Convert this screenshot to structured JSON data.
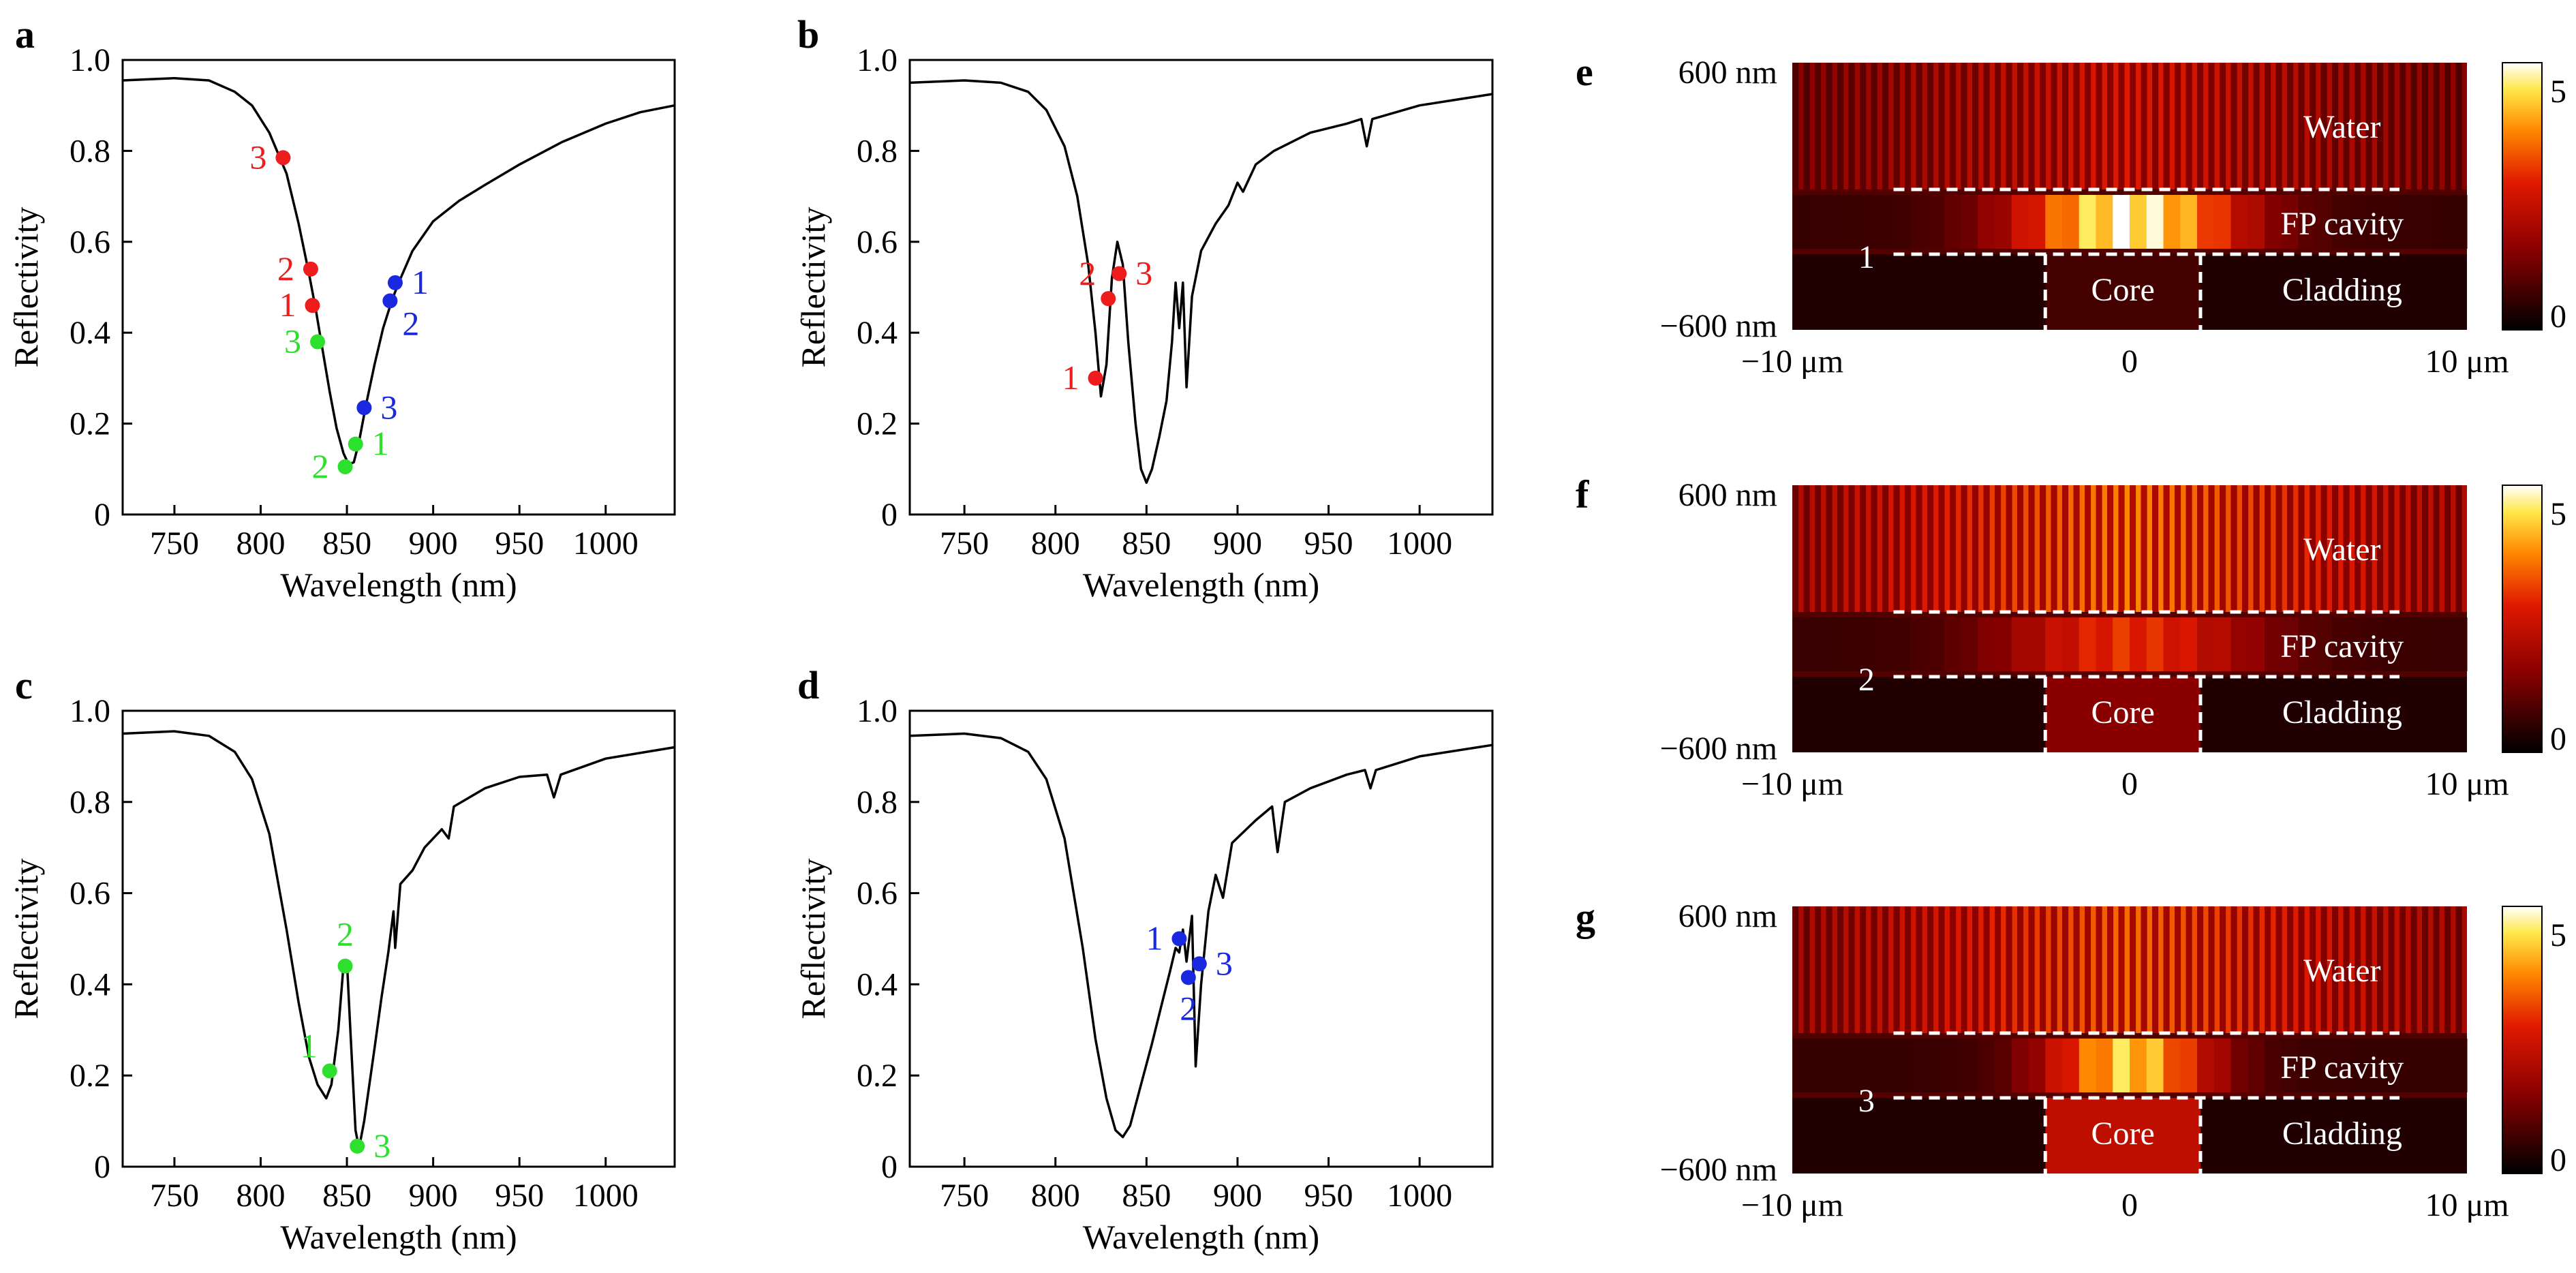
{
  "chart_data": [
    {
      "panel": "a",
      "type": "line",
      "xlabel": "Wavelength (nm)",
      "ylabel": "Reflectivity",
      "xlim": [
        720,
        1040
      ],
      "ylim": [
        0,
        1.0
      ],
      "xticks": [
        750,
        800,
        850,
        900,
        950,
        1000
      ],
      "yticks": [
        "0",
        "0.2",
        "0.4",
        "0.6",
        "0.8",
        "1.0"
      ],
      "curve": [
        [
          720,
          0.955
        ],
        [
          750,
          0.96
        ],
        [
          770,
          0.955
        ],
        [
          785,
          0.93
        ],
        [
          795,
          0.9
        ],
        [
          805,
          0.84
        ],
        [
          815,
          0.75
        ],
        [
          822,
          0.64
        ],
        [
          828,
          0.53
        ],
        [
          832,
          0.45
        ],
        [
          836,
          0.36
        ],
        [
          840,
          0.27
        ],
        [
          844,
          0.19
        ],
        [
          848,
          0.135
        ],
        [
          851,
          0.11
        ],
        [
          854,
          0.115
        ],
        [
          857,
          0.16
        ],
        [
          861,
          0.24
        ],
        [
          866,
          0.33
        ],
        [
          871,
          0.41
        ],
        [
          876,
          0.47
        ],
        [
          880,
          0.51
        ],
        [
          888,
          0.58
        ],
        [
          900,
          0.645
        ],
        [
          915,
          0.69
        ],
        [
          930,
          0.725
        ],
        [
          950,
          0.77
        ],
        [
          975,
          0.82
        ],
        [
          1000,
          0.86
        ],
        [
          1020,
          0.885
        ],
        [
          1040,
          0.9
        ]
      ],
      "markers": [
        {
          "x": 813,
          "y": 0.785,
          "label": "3",
          "color": "#ee1c1c",
          "side": "left"
        },
        {
          "x": 829,
          "y": 0.54,
          "label": "2",
          "color": "#ee1c1c",
          "side": "left"
        },
        {
          "x": 830,
          "y": 0.46,
          "label": "1",
          "color": "#ee1c1c",
          "side": "left"
        },
        {
          "x": 833,
          "y": 0.38,
          "label": "3",
          "color": "#2ee02e",
          "side": "left"
        },
        {
          "x": 849,
          "y": 0.105,
          "label": "2",
          "color": "#2ee02e",
          "side": "left"
        },
        {
          "x": 855,
          "y": 0.155,
          "label": "1",
          "color": "#2ee02e",
          "side": "right"
        },
        {
          "x": 878,
          "y": 0.51,
          "label": "1",
          "color": "#1a28e0",
          "side": "right"
        },
        {
          "x": 875,
          "y": 0.47,
          "label": "2",
          "color": "#1a28e0",
          "side": "rightlow"
        },
        {
          "x": 860,
          "y": 0.235,
          "label": "3",
          "color": "#1a28e0",
          "side": "right"
        }
      ]
    },
    {
      "panel": "b",
      "type": "line",
      "xlabel": "Wavelength (nm)",
      "ylabel": "Reflectivity",
      "xlim": [
        720,
        1040
      ],
      "ylim": [
        0,
        1.0
      ],
      "xticks": [
        750,
        800,
        850,
        900,
        950,
        1000
      ],
      "yticks": [
        "0",
        "0.2",
        "0.4",
        "0.6",
        "0.8",
        "1.0"
      ],
      "curve": [
        [
          720,
          0.95
        ],
        [
          750,
          0.955
        ],
        [
          770,
          0.95
        ],
        [
          785,
          0.93
        ],
        [
          795,
          0.89
        ],
        [
          805,
          0.81
        ],
        [
          812,
          0.7
        ],
        [
          818,
          0.55
        ],
        [
          822,
          0.4
        ],
        [
          825,
          0.26
        ],
        [
          828,
          0.33
        ],
        [
          831,
          0.52
        ],
        [
          834,
          0.6
        ],
        [
          837,
          0.55
        ],
        [
          840,
          0.38
        ],
        [
          844,
          0.2
        ],
        [
          847,
          0.1
        ],
        [
          850,
          0.07
        ],
        [
          853,
          0.1
        ],
        [
          857,
          0.17
        ],
        [
          861,
          0.25
        ],
        [
          864,
          0.38
        ],
        [
          866,
          0.51
        ],
        [
          868,
          0.41
        ],
        [
          870,
          0.51
        ],
        [
          872,
          0.28
        ],
        [
          875,
          0.48
        ],
        [
          880,
          0.58
        ],
        [
          888,
          0.64
        ],
        [
          895,
          0.68
        ],
        [
          900,
          0.73
        ],
        [
          903,
          0.71
        ],
        [
          910,
          0.77
        ],
        [
          920,
          0.8
        ],
        [
          940,
          0.84
        ],
        [
          960,
          0.86
        ],
        [
          968,
          0.87
        ],
        [
          971,
          0.81
        ],
        [
          974,
          0.87
        ],
        [
          1000,
          0.9
        ],
        [
          1040,
          0.925
        ]
      ],
      "markers": [
        {
          "x": 822,
          "y": 0.3,
          "label": "1",
          "color": "#ee1c1c",
          "side": "left"
        },
        {
          "x": 829,
          "y": 0.475,
          "label": "2",
          "color": "#ee1c1c",
          "side": "lefthigh"
        },
        {
          "x": 835,
          "y": 0.53,
          "label": "3",
          "color": "#ee1c1c",
          "side": "right"
        }
      ]
    },
    {
      "panel": "c",
      "type": "line",
      "xlabel": "Wavelength (nm)",
      "ylabel": "Reflectivity",
      "xlim": [
        720,
        1040
      ],
      "ylim": [
        0,
        1.0
      ],
      "xticks": [
        750,
        800,
        850,
        900,
        950,
        1000
      ],
      "yticks": [
        "0",
        "0.2",
        "0.4",
        "0.6",
        "0.8",
        "1.0"
      ],
      "curve": [
        [
          720,
          0.95
        ],
        [
          750,
          0.955
        ],
        [
          770,
          0.945
        ],
        [
          785,
          0.91
        ],
        [
          795,
          0.85
        ],
        [
          805,
          0.73
        ],
        [
          815,
          0.52
        ],
        [
          822,
          0.36
        ],
        [
          828,
          0.24
        ],
        [
          833,
          0.18
        ],
        [
          838,
          0.15
        ],
        [
          841,
          0.18
        ],
        [
          845,
          0.3
        ],
        [
          848,
          0.44
        ],
        [
          850,
          0.45
        ],
        [
          852,
          0.3
        ],
        [
          855,
          0.08
        ],
        [
          857,
          0.04
        ],
        [
          860,
          0.1
        ],
        [
          866,
          0.26
        ],
        [
          870,
          0.37
        ],
        [
          874,
          0.47
        ],
        [
          877,
          0.56
        ],
        [
          878,
          0.48
        ],
        [
          881,
          0.62
        ],
        [
          888,
          0.65
        ],
        [
          895,
          0.7
        ],
        [
          905,
          0.74
        ],
        [
          909,
          0.72
        ],
        [
          912,
          0.79
        ],
        [
          930,
          0.83
        ],
        [
          950,
          0.855
        ],
        [
          966,
          0.86
        ],
        [
          970,
          0.81
        ],
        [
          974,
          0.86
        ],
        [
          1000,
          0.895
        ],
        [
          1040,
          0.92
        ]
      ],
      "markers": [
        {
          "x": 840,
          "y": 0.21,
          "label": "1",
          "color": "#2ee02e",
          "side": "lefthigh"
        },
        {
          "x": 849,
          "y": 0.44,
          "label": "2",
          "color": "#2ee02e",
          "side": "above"
        },
        {
          "x": 856,
          "y": 0.045,
          "label": "3",
          "color": "#2ee02e",
          "side": "right"
        }
      ]
    },
    {
      "panel": "d",
      "type": "line",
      "xlabel": "Wavelength (nm)",
      "ylabel": "Reflectivity",
      "xlim": [
        720,
        1040
      ],
      "ylim": [
        0,
        1.0
      ],
      "xticks": [
        750,
        800,
        850,
        900,
        950,
        1000
      ],
      "yticks": [
        "0",
        "0.2",
        "0.4",
        "0.6",
        "0.8",
        "1.0"
      ],
      "curve": [
        [
          720,
          0.945
        ],
        [
          750,
          0.95
        ],
        [
          770,
          0.94
        ],
        [
          785,
          0.91
        ],
        [
          795,
          0.85
        ],
        [
          805,
          0.72
        ],
        [
          815,
          0.48
        ],
        [
          822,
          0.28
        ],
        [
          828,
          0.15
        ],
        [
          833,
          0.08
        ],
        [
          837,
          0.065
        ],
        [
          841,
          0.09
        ],
        [
          847,
          0.18
        ],
        [
          853,
          0.27
        ],
        [
          858,
          0.35
        ],
        [
          863,
          0.43
        ],
        [
          866,
          0.48
        ],
        [
          868,
          0.47
        ],
        [
          870,
          0.52
        ],
        [
          872,
          0.45
        ],
        [
          875,
          0.55
        ],
        [
          877,
          0.22
        ],
        [
          880,
          0.4
        ],
        [
          884,
          0.56
        ],
        [
          888,
          0.64
        ],
        [
          892,
          0.59
        ],
        [
          897,
          0.71
        ],
        [
          910,
          0.76
        ],
        [
          919,
          0.79
        ],
        [
          922,
          0.69
        ],
        [
          926,
          0.8
        ],
        [
          940,
          0.83
        ],
        [
          960,
          0.86
        ],
        [
          970,
          0.87
        ],
        [
          973,
          0.83
        ],
        [
          976,
          0.87
        ],
        [
          1000,
          0.9
        ],
        [
          1040,
          0.925
        ]
      ],
      "markers": [
        {
          "x": 868,
          "y": 0.5,
          "label": "1",
          "color": "#1a28e0",
          "side": "left"
        },
        {
          "x": 873,
          "y": 0.415,
          "label": "2",
          "color": "#1a28e0",
          "side": "below"
        },
        {
          "x": 879,
          "y": 0.445,
          "label": "3",
          "color": "#1a28e0",
          "side": "right"
        }
      ]
    },
    {
      "panel": "e",
      "type": "heatmap",
      "ylabels": [
        "600 nm",
        "−600 nm"
      ],
      "xlabels": [
        "−10 μm",
        "0",
        "10 μm"
      ],
      "region_labels": [
        "Water",
        "FP cavity",
        "Core",
        "Cladding"
      ],
      "marker_label": "1",
      "colorbar_ticks": [
        "5",
        "0"
      ],
      "water_intensity": 0.55,
      "cavity_intensity": 0.9,
      "cavity_width": 0.22,
      "core_intensity": 0.15
    },
    {
      "panel": "f",
      "type": "heatmap",
      "ylabels": [
        "600 nm",
        "−600 nm"
      ],
      "xlabels": [
        "−10 μm",
        "0",
        "10 μm"
      ],
      "region_labels": [
        "Water",
        "FP cavity",
        "Core",
        "Cladding"
      ],
      "marker_label": "2",
      "colorbar_ticks": [
        "5",
        "0"
      ],
      "water_intensity": 0.75,
      "cavity_intensity": 0.5,
      "cavity_width": 0.25,
      "core_intensity": 0.3
    },
    {
      "panel": "g",
      "type": "heatmap",
      "ylabels": [
        "600 nm",
        "−600 nm"
      ],
      "xlabels": [
        "−10 μm",
        "0",
        "10 μm"
      ],
      "region_labels": [
        "Water",
        "FP cavity",
        "Core",
        "Cladding"
      ],
      "marker_label": "3",
      "colorbar_ticks": [
        "5",
        "0"
      ],
      "water_intensity": 0.7,
      "cavity_intensity": 0.8,
      "cavity_width": 0.16,
      "core_intensity": 0.45
    }
  ]
}
